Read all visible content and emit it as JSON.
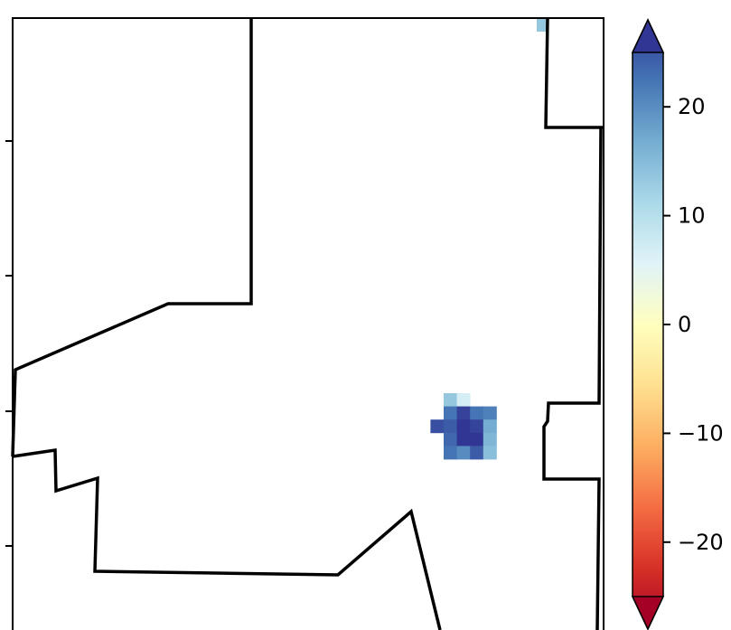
{
  "colorbar": {
    "colormap": "RdYlBu",
    "extend": "both",
    "vmin": -25,
    "vmax": 25,
    "ticks": [
      {
        "value": 20,
        "label": "20"
      },
      {
        "value": 10,
        "label": "10"
      },
      {
        "value": 0,
        "label": "0"
      },
      {
        "value": -10,
        "label": "−10"
      },
      {
        "value": -20,
        "label": "−20"
      }
    ],
    "stops": [
      {
        "t": 0.0,
        "color": "#a50026"
      },
      {
        "t": 0.1,
        "color": "#d73027"
      },
      {
        "t": 0.2,
        "color": "#f46d43"
      },
      {
        "t": 0.3,
        "color": "#fdae61"
      },
      {
        "t": 0.4,
        "color": "#fee090"
      },
      {
        "t": 0.5,
        "color": "#ffffbf"
      },
      {
        "t": 0.6,
        "color": "#e0f3f8"
      },
      {
        "t": 0.7,
        "color": "#abd9e9"
      },
      {
        "t": 0.8,
        "color": "#74add1"
      },
      {
        "t": 0.9,
        "color": "#4575b4"
      },
      {
        "t": 1.0,
        "color": "#313695"
      }
    ]
  },
  "grid_cells": [
    {
      "row": 0,
      "col": 0,
      "value": 12
    },
    {
      "row": 0,
      "col": 1,
      "value": 6
    },
    {
      "row": 1,
      "col": 0,
      "value": 20
    },
    {
      "row": 1,
      "col": 1,
      "value": 24
    },
    {
      "row": 1,
      "col": 2,
      "value": 20
    },
    {
      "row": 1,
      "col": 3,
      "value": 19
    },
    {
      "row": 2,
      "col": -1,
      "value": 23
    },
    {
      "row": 2,
      "col": 0,
      "value": 22
    },
    {
      "row": 2,
      "col": 1,
      "value": 25
    },
    {
      "row": 2,
      "col": 2,
      "value": 24
    },
    {
      "row": 2,
      "col": 3,
      "value": 15
    },
    {
      "row": 3,
      "col": 0,
      "value": 21
    },
    {
      "row": 3,
      "col": 1,
      "value": 25
    },
    {
      "row": 3,
      "col": 2,
      "value": 25
    },
    {
      "row": 3,
      "col": 3,
      "value": 14
    },
    {
      "row": 4,
      "col": 0,
      "value": 20
    },
    {
      "row": 4,
      "col": 1,
      "value": 18
    },
    {
      "row": 4,
      "col": 2,
      "value": 22
    },
    {
      "row": 4,
      "col": 3,
      "value": 13
    }
  ],
  "corner_cell": {
    "value": 12
  }
}
